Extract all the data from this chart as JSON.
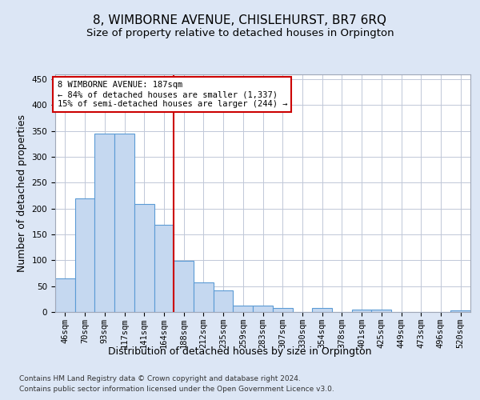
{
  "title": "8, WIMBORNE AVENUE, CHISLEHURST, BR7 6RQ",
  "subtitle": "Size of property relative to detached houses in Orpington",
  "xlabel": "Distribution of detached houses by size in Orpington",
  "ylabel": "Number of detached properties",
  "footer_line1": "Contains HM Land Registry data © Crown copyright and database right 2024.",
  "footer_line2": "Contains public sector information licensed under the Open Government Licence v3.0.",
  "annotation_line1": "8 WIMBORNE AVENUE: 187sqm",
  "annotation_line2": "← 84% of detached houses are smaller (1,337)",
  "annotation_line3": "15% of semi-detached houses are larger (244) →",
  "bin_labels": [
    "46sqm",
    "70sqm",
    "93sqm",
    "117sqm",
    "141sqm",
    "164sqm",
    "188sqm",
    "212sqm",
    "235sqm",
    "259sqm",
    "283sqm",
    "307sqm",
    "330sqm",
    "354sqm",
    "378sqm",
    "401sqm",
    "425sqm",
    "449sqm",
    "473sqm",
    "496sqm",
    "520sqm"
  ],
  "bar_heights": [
    65,
    220,
    345,
    345,
    208,
    168,
    99,
    57,
    42,
    13,
    13,
    8,
    0,
    7,
    0,
    5,
    5,
    0,
    0,
    0,
    3
  ],
  "bar_color": "#c5d8f0",
  "bar_edge_color": "#5b9bd5",
  "vline_index": 6,
  "vline_color": "#cc0000",
  "ylim": [
    0,
    460
  ],
  "yticks": [
    0,
    50,
    100,
    150,
    200,
    250,
    300,
    350,
    400,
    450
  ],
  "bg_color": "#dce6f5",
  "plot_bg_color": "#ffffff",
  "grid_color": "#c0c8d8",
  "title_fontsize": 11,
  "subtitle_fontsize": 9.5,
  "tick_fontsize": 7.5,
  "label_fontsize": 9,
  "footer_fontsize": 6.5
}
